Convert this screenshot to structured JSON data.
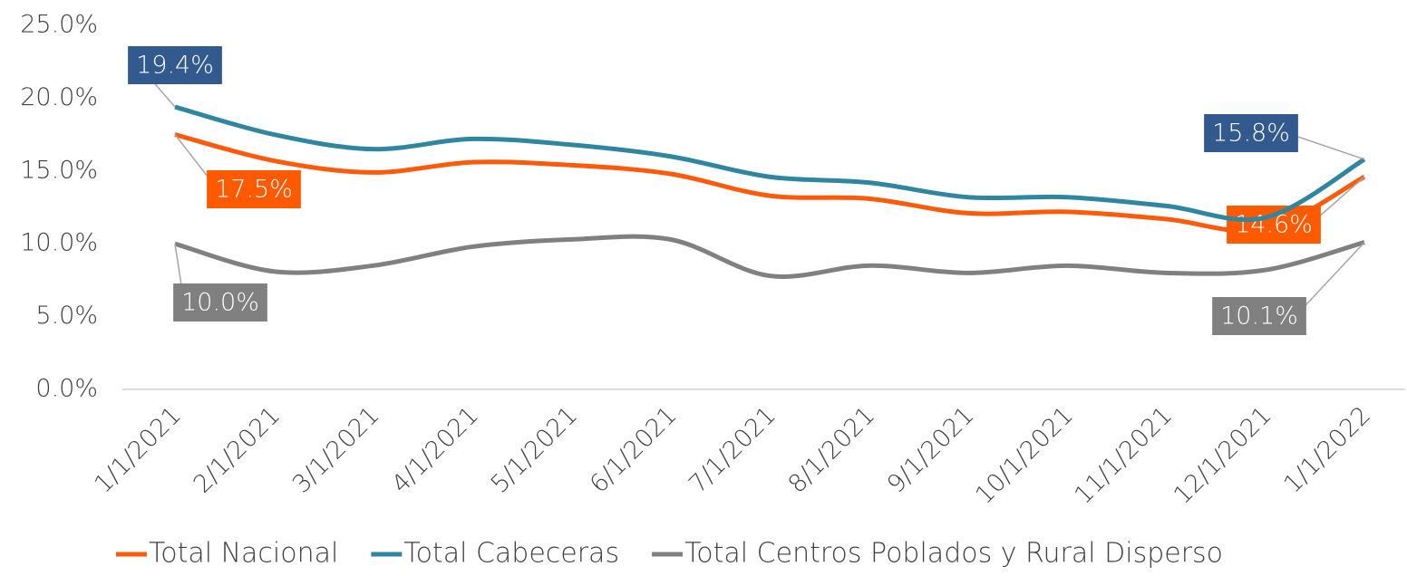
{
  "chart_data": {
    "type": "line",
    "categories": [
      "1/1/2021",
      "2/1/2021",
      "3/1/2021",
      "4/1/2021",
      "5/1/2021",
      "6/1/2021",
      "7/1/2021",
      "8/1/2021",
      "9/1/2021",
      "10/1/2021",
      "11/1/2021",
      "12/1/2021",
      "1/1/2022"
    ],
    "series": [
      {
        "name": "Total Nacional",
        "color": "#ff5a0a",
        "label_color": "#ff5a00",
        "values": [
          17.5,
          15.7,
          14.9,
          15.6,
          15.4,
          14.8,
          13.3,
          13.1,
          12.1,
          12.2,
          11.7,
          11.0,
          14.6
        ],
        "value_labels": [
          "17.5%",
          null,
          null,
          null,
          null,
          null,
          null,
          null,
          null,
          null,
          null,
          null,
          "14.6%"
        ]
      },
      {
        "name": "Total Cabeceras",
        "color": "#2e86a0",
        "label_color": "#335a8e",
        "values": [
          19.4,
          17.5,
          16.5,
          17.2,
          16.8,
          16.0,
          14.6,
          14.2,
          13.2,
          13.2,
          12.6,
          11.8,
          15.8
        ],
        "value_labels": [
          "19.4%",
          null,
          null,
          null,
          null,
          null,
          null,
          null,
          null,
          null,
          null,
          null,
          "15.8%"
        ]
      },
      {
        "name": "Total Centros Poblados y Rural Disperso",
        "color": "#808080",
        "label_color": "#808080",
        "values": [
          10.0,
          8.1,
          8.5,
          9.8,
          10.3,
          10.3,
          7.8,
          8.5,
          8.0,
          8.5,
          8.0,
          8.2,
          10.1
        ],
        "value_labels": [
          "10.0%",
          null,
          null,
          null,
          null,
          null,
          null,
          null,
          null,
          null,
          null,
          null,
          "10.1%"
        ]
      }
    ],
    "ylim": [
      0,
      25
    ],
    "yticks": [
      {
        "value": 0,
        "label": "0.0%"
      },
      {
        "value": 5,
        "label": "5.0%"
      },
      {
        "value": 10,
        "label": "10.0%"
      },
      {
        "value": 15,
        "label": "15.0%"
      },
      {
        "value": 20,
        "label": "20.0%"
      },
      {
        "value": 25,
        "label": "25.0%"
      }
    ],
    "legend": "bottom"
  }
}
